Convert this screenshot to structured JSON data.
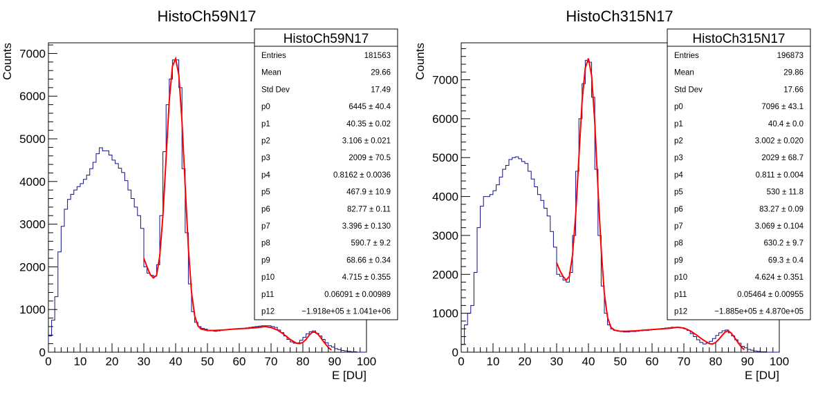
{
  "chart_data": [
    {
      "type": "histogram",
      "title": "HistoCh59N17",
      "xlabel": "E [DU]",
      "ylabel": "Counts",
      "xlim": [
        0,
        100
      ],
      "ylim": [
        0,
        7250
      ],
      "x_ticks": [
        0,
        10,
        20,
        30,
        40,
        50,
        60,
        70,
        80,
        90,
        100
      ],
      "y_ticks": [
        0,
        1000,
        2000,
        3000,
        4000,
        5000,
        6000,
        7000
      ],
      "bin_width": 1,
      "series": [
        {
          "values": [
            380,
            750,
            1300,
            2350,
            2950,
            3350,
            3580,
            3700,
            3800,
            3880,
            3950,
            4050,
            4150,
            4300,
            4450,
            4650,
            4790,
            4720,
            4720,
            4620,
            4500,
            4420,
            4310,
            4210,
            4020,
            3800,
            3600,
            3400,
            3200,
            2900,
            2000,
            1850,
            1800,
            1780,
            2050,
            3200,
            4700,
            5800,
            6400,
            6850,
            6850,
            6200,
            4300,
            2800,
            1600,
            950,
            700,
            600,
            560,
            540,
            500,
            500,
            490,
            500,
            520,
            520,
            530,
            540,
            540,
            550,
            550,
            560,
            570,
            580,
            590,
            600,
            610,
            620,
            620,
            620,
            600,
            580,
            520,
            460,
            380,
            300,
            240,
            210,
            220,
            280,
            350,
            430,
            480,
            500,
            440,
            380,
            300,
            220,
            150,
            120,
            80,
            60,
            40,
            30,
            20,
            10,
            10,
            0,
            0,
            0
          ]
        },
        {
          "name": "fit",
          "x": [
            30,
            31,
            32,
            33,
            34,
            35,
            36,
            37,
            38,
            39,
            40,
            41,
            42,
            43,
            44,
            45,
            46,
            47,
            48,
            50,
            52,
            55,
            58,
            60,
            63,
            66,
            68,
            70,
            72,
            74,
            76,
            78,
            79,
            80,
            81,
            82,
            83,
            84,
            85,
            86,
            87,
            88,
            89
          ],
          "values": [
            2200,
            2000,
            1820,
            1740,
            1800,
            2250,
            3200,
            4550,
            5900,
            6700,
            6880,
            6500,
            5400,
            3900,
            2450,
            1400,
            850,
            620,
            540,
            510,
            510,
            520,
            540,
            550,
            560,
            580,
            600,
            580,
            520,
            420,
            300,
            210,
            200,
            230,
            300,
            400,
            470,
            470,
            400,
            300,
            200,
            110,
            50
          ]
        }
      ],
      "stats": {
        "title": "HistoCh59N17",
        "rows": [
          {
            "label": "Entries",
            "value": "181563"
          },
          {
            "label": "Mean",
            "value": "29.66"
          },
          {
            "label": "Std Dev",
            "value": "17.49"
          },
          {
            "label": "p0",
            "value": "6445 ± 40.4"
          },
          {
            "label": "p1",
            "value": "40.35 ± 0.02"
          },
          {
            "label": "p2",
            "value": "3.106 ± 0.021"
          },
          {
            "label": "p3",
            "value": "2009 ± 70.5"
          },
          {
            "label": "p4",
            "value": "0.8162 ± 0.0036"
          },
          {
            "label": "p5",
            "value": "467.9 ± 10.9"
          },
          {
            "label": "p6",
            "value": "82.77 ± 0.11"
          },
          {
            "label": "p7",
            "value": "3.396 ± 0.130"
          },
          {
            "label": "p8",
            "value": "590.7 ± 9.2"
          },
          {
            "label": "p9",
            "value": "68.66 ± 0.34"
          },
          {
            "label": "p10",
            "value": "4.715 ± 0.355"
          },
          {
            "label": "p11",
            "value": "0.06091 ± 0.00989"
          },
          {
            "label": "p12",
            "value": "−1.918e+05 ± 1.041e+06"
          }
        ]
      },
      "colors": {
        "histogram": "#0d0d8c",
        "fit": "#ff0000"
      }
    },
    {
      "type": "histogram",
      "title": "HistoCh315N17",
      "xlabel": "E [DU]",
      "ylabel": "Counts",
      "xlim": [
        0,
        100
      ],
      "ylim": [
        0,
        7950
      ],
      "x_ticks": [
        0,
        10,
        20,
        30,
        40,
        50,
        60,
        70,
        80,
        90,
        100
      ],
      "y_ticks": [
        0,
        1000,
        2000,
        3000,
        4000,
        5000,
        6000,
        7000
      ],
      "bin_width": 1,
      "series": [
        {
          "values": [
            200,
            700,
            1000,
            1200,
            2050,
            3200,
            3750,
            4000,
            4000,
            4050,
            4150,
            4300,
            4500,
            4700,
            4800,
            4950,
            5000,
            5020,
            4970,
            4900,
            4850,
            4650,
            4450,
            4250,
            4050,
            3900,
            3700,
            3500,
            3100,
            2700,
            2000,
            1950,
            1850,
            1800,
            2050,
            3000,
            4650,
            6000,
            6900,
            7500,
            7450,
            6550,
            4700,
            3000,
            1700,
            1000,
            700,
            600,
            560,
            540,
            530,
            520,
            520,
            530,
            530,
            540,
            550,
            560,
            560,
            570,
            580,
            590,
            600,
            610,
            620,
            630,
            640,
            640,
            640,
            630,
            600,
            560,
            480,
            400,
            320,
            250,
            210,
            230,
            280,
            350,
            430,
            500,
            550,
            570,
            500,
            420,
            320,
            230,
            150,
            110,
            70,
            50,
            30,
            20,
            10,
            10,
            0,
            0,
            0,
            0
          ]
        },
        {
          "name": "fit",
          "x": [
            30,
            31,
            32,
            33,
            34,
            35,
            36,
            37,
            38,
            39,
            40,
            41,
            42,
            43,
            44,
            45,
            46,
            47,
            48,
            50,
            52,
            55,
            58,
            60,
            63,
            66,
            68,
            70,
            72,
            74,
            76,
            78,
            79,
            80,
            81,
            82,
            83,
            84,
            85,
            86,
            87,
            88,
            89
          ],
          "values": [
            2300,
            2100,
            1950,
            1850,
            1950,
            2500,
            3550,
            5000,
            6450,
            7300,
            7550,
            7100,
            5900,
            4200,
            2650,
            1500,
            900,
            650,
            570,
            540,
            540,
            550,
            570,
            580,
            600,
            620,
            640,
            620,
            550,
            440,
            320,
            220,
            210,
            250,
            330,
            430,
            520,
            550,
            480,
            370,
            250,
            140,
            60
          ]
        }
      ],
      "stats": {
        "title": "HistoCh315N17",
        "rows": [
          {
            "label": "Entries",
            "value": "196873"
          },
          {
            "label": "Mean",
            "value": "29.86"
          },
          {
            "label": "Std Dev",
            "value": "17.66"
          },
          {
            "label": "p0",
            "value": "7096 ± 43.1"
          },
          {
            "label": "p1",
            "value": "40.4 ± 0.0"
          },
          {
            "label": "p2",
            "value": "3.002 ± 0.020"
          },
          {
            "label": "p3",
            "value": "2029 ± 68.7"
          },
          {
            "label": "p4",
            "value": "0.811 ± 0.004"
          },
          {
            "label": "p5",
            "value": "530 ± 11.8"
          },
          {
            "label": "p6",
            "value": "83.27 ± 0.09"
          },
          {
            "label": "p7",
            "value": "3.069 ± 0.104"
          },
          {
            "label": "p8",
            "value": "630.2 ± 9.7"
          },
          {
            "label": "p9",
            "value": "69.3 ± 0.4"
          },
          {
            "label": "p10",
            "value": "4.624 ± 0.351"
          },
          {
            "label": "p11",
            "value": "0.05464 ± 0.00955"
          },
          {
            "label": "p12",
            "value": "−1.885e+05 ± 4.870e+05"
          }
        ]
      },
      "colors": {
        "histogram": "#0d0d8c",
        "fit": "#ff0000"
      }
    }
  ]
}
